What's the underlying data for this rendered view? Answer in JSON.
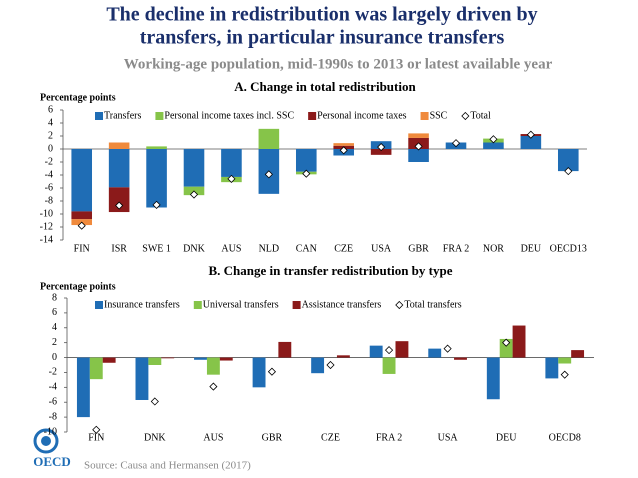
{
  "title": "The decline in redistribution was largely driven by transfers, in particular insurance transfers",
  "title_lines": [
    "The decline in redistribution was largely driven by",
    "transfers, in particular insurance transfers"
  ],
  "subtitle": "Working-age population, mid-1990s to 2013 or latest available year",
  "source": "Source: Causa and Hermansen (2017)",
  "logo": "OECD",
  "chart_data": [
    {
      "type": "bar",
      "stacked": true,
      "title": "A. Change in total redistribution",
      "ylabel": "Percentage points",
      "categories": [
        "FIN",
        "ISR",
        "SWE 1",
        "DNK",
        "AUS",
        "NLD",
        "CAN",
        "CZE",
        "USA",
        "GBR",
        "FRA 2",
        "NOR",
        "DEU",
        "OECD13"
      ],
      "series": [
        {
          "name": "Transfers",
          "color": "#1f6db5",
          "values": [
            -9.6,
            -5.9,
            -9.0,
            -5.8,
            -4.3,
            -6.9,
            -3.5,
            -1.0,
            1.2,
            -2.0,
            1.0,
            1.0,
            2.0,
            -3.4
          ]
        },
        {
          "name": "Personal income taxes incl. SSC",
          "color": "#86c449",
          "values": [
            null,
            null,
            0.4,
            -1.3,
            -0.8,
            3.1,
            -0.4,
            null,
            null,
            null,
            null,
            0.6,
            null,
            null
          ]
        },
        {
          "name": "Personal income taxes",
          "color": "#8b1a1a",
          "values": [
            -1.2,
            -3.8,
            null,
            null,
            null,
            null,
            null,
            0.5,
            -0.9,
            1.7,
            null,
            null,
            0.3,
            null
          ]
        },
        {
          "name": "SSC",
          "color": "#f08a3c",
          "values": [
            -0.9,
            1.0,
            null,
            null,
            null,
            null,
            null,
            0.4,
            null,
            0.7,
            null,
            null,
            null,
            null
          ]
        },
        {
          "name": "Total",
          "color": "#ffffff",
          "marker": "diamond",
          "values": [
            -11.8,
            -8.7,
            -8.6,
            -7.0,
            -4.6,
            -3.9,
            -3.8,
            -0.2,
            0.3,
            0.4,
            0.9,
            1.5,
            2.2,
            -3.4
          ]
        }
      ],
      "ylim": [
        -14,
        6
      ],
      "yticks": [
        -14,
        -12,
        -10,
        -8,
        -6,
        -4,
        -2,
        0,
        2,
        4,
        6
      ],
      "grid": false,
      "legend": "top"
    },
    {
      "type": "bar",
      "stacked": false,
      "title": "B. Change in transfer redistribution by type",
      "ylabel": "Percentage points",
      "categories": [
        "FIN",
        "DNK",
        "AUS",
        "GBR",
        "CZE",
        "FRA 2",
        "USA",
        "DEU",
        "OECD8"
      ],
      "series": [
        {
          "name": "Insurance transfers",
          "color": "#1f6db5",
          "values": [
            -8.0,
            -5.7,
            -0.3,
            -4.0,
            -2.1,
            1.6,
            1.2,
            -5.6,
            -2.8
          ]
        },
        {
          "name": "Universal transfers",
          "color": "#86c449",
          "values": [
            -2.9,
            -1.0,
            -2.3,
            null,
            null,
            -2.2,
            null,
            2.5,
            -0.8
          ]
        },
        {
          "name": "Assistance transfers",
          "color": "#8b1a1a",
          "values": [
            -0.7,
            -0.1,
            -0.4,
            2.1,
            0.3,
            2.2,
            -0.3,
            4.3,
            1.0
          ]
        },
        {
          "name": "Total transfers",
          "color": "#ffffff",
          "marker": "diamond",
          "values": [
            -9.7,
            -5.9,
            -3.9,
            -1.9,
            -1.0,
            1.0,
            1.2,
            2.0,
            -2.3
          ]
        }
      ],
      "ylim": [
        -10,
        8
      ],
      "yticks": [
        -10,
        -8,
        -6,
        -4,
        -2,
        0,
        2,
        4,
        6,
        8
      ],
      "grid": false,
      "legend": "top"
    }
  ]
}
